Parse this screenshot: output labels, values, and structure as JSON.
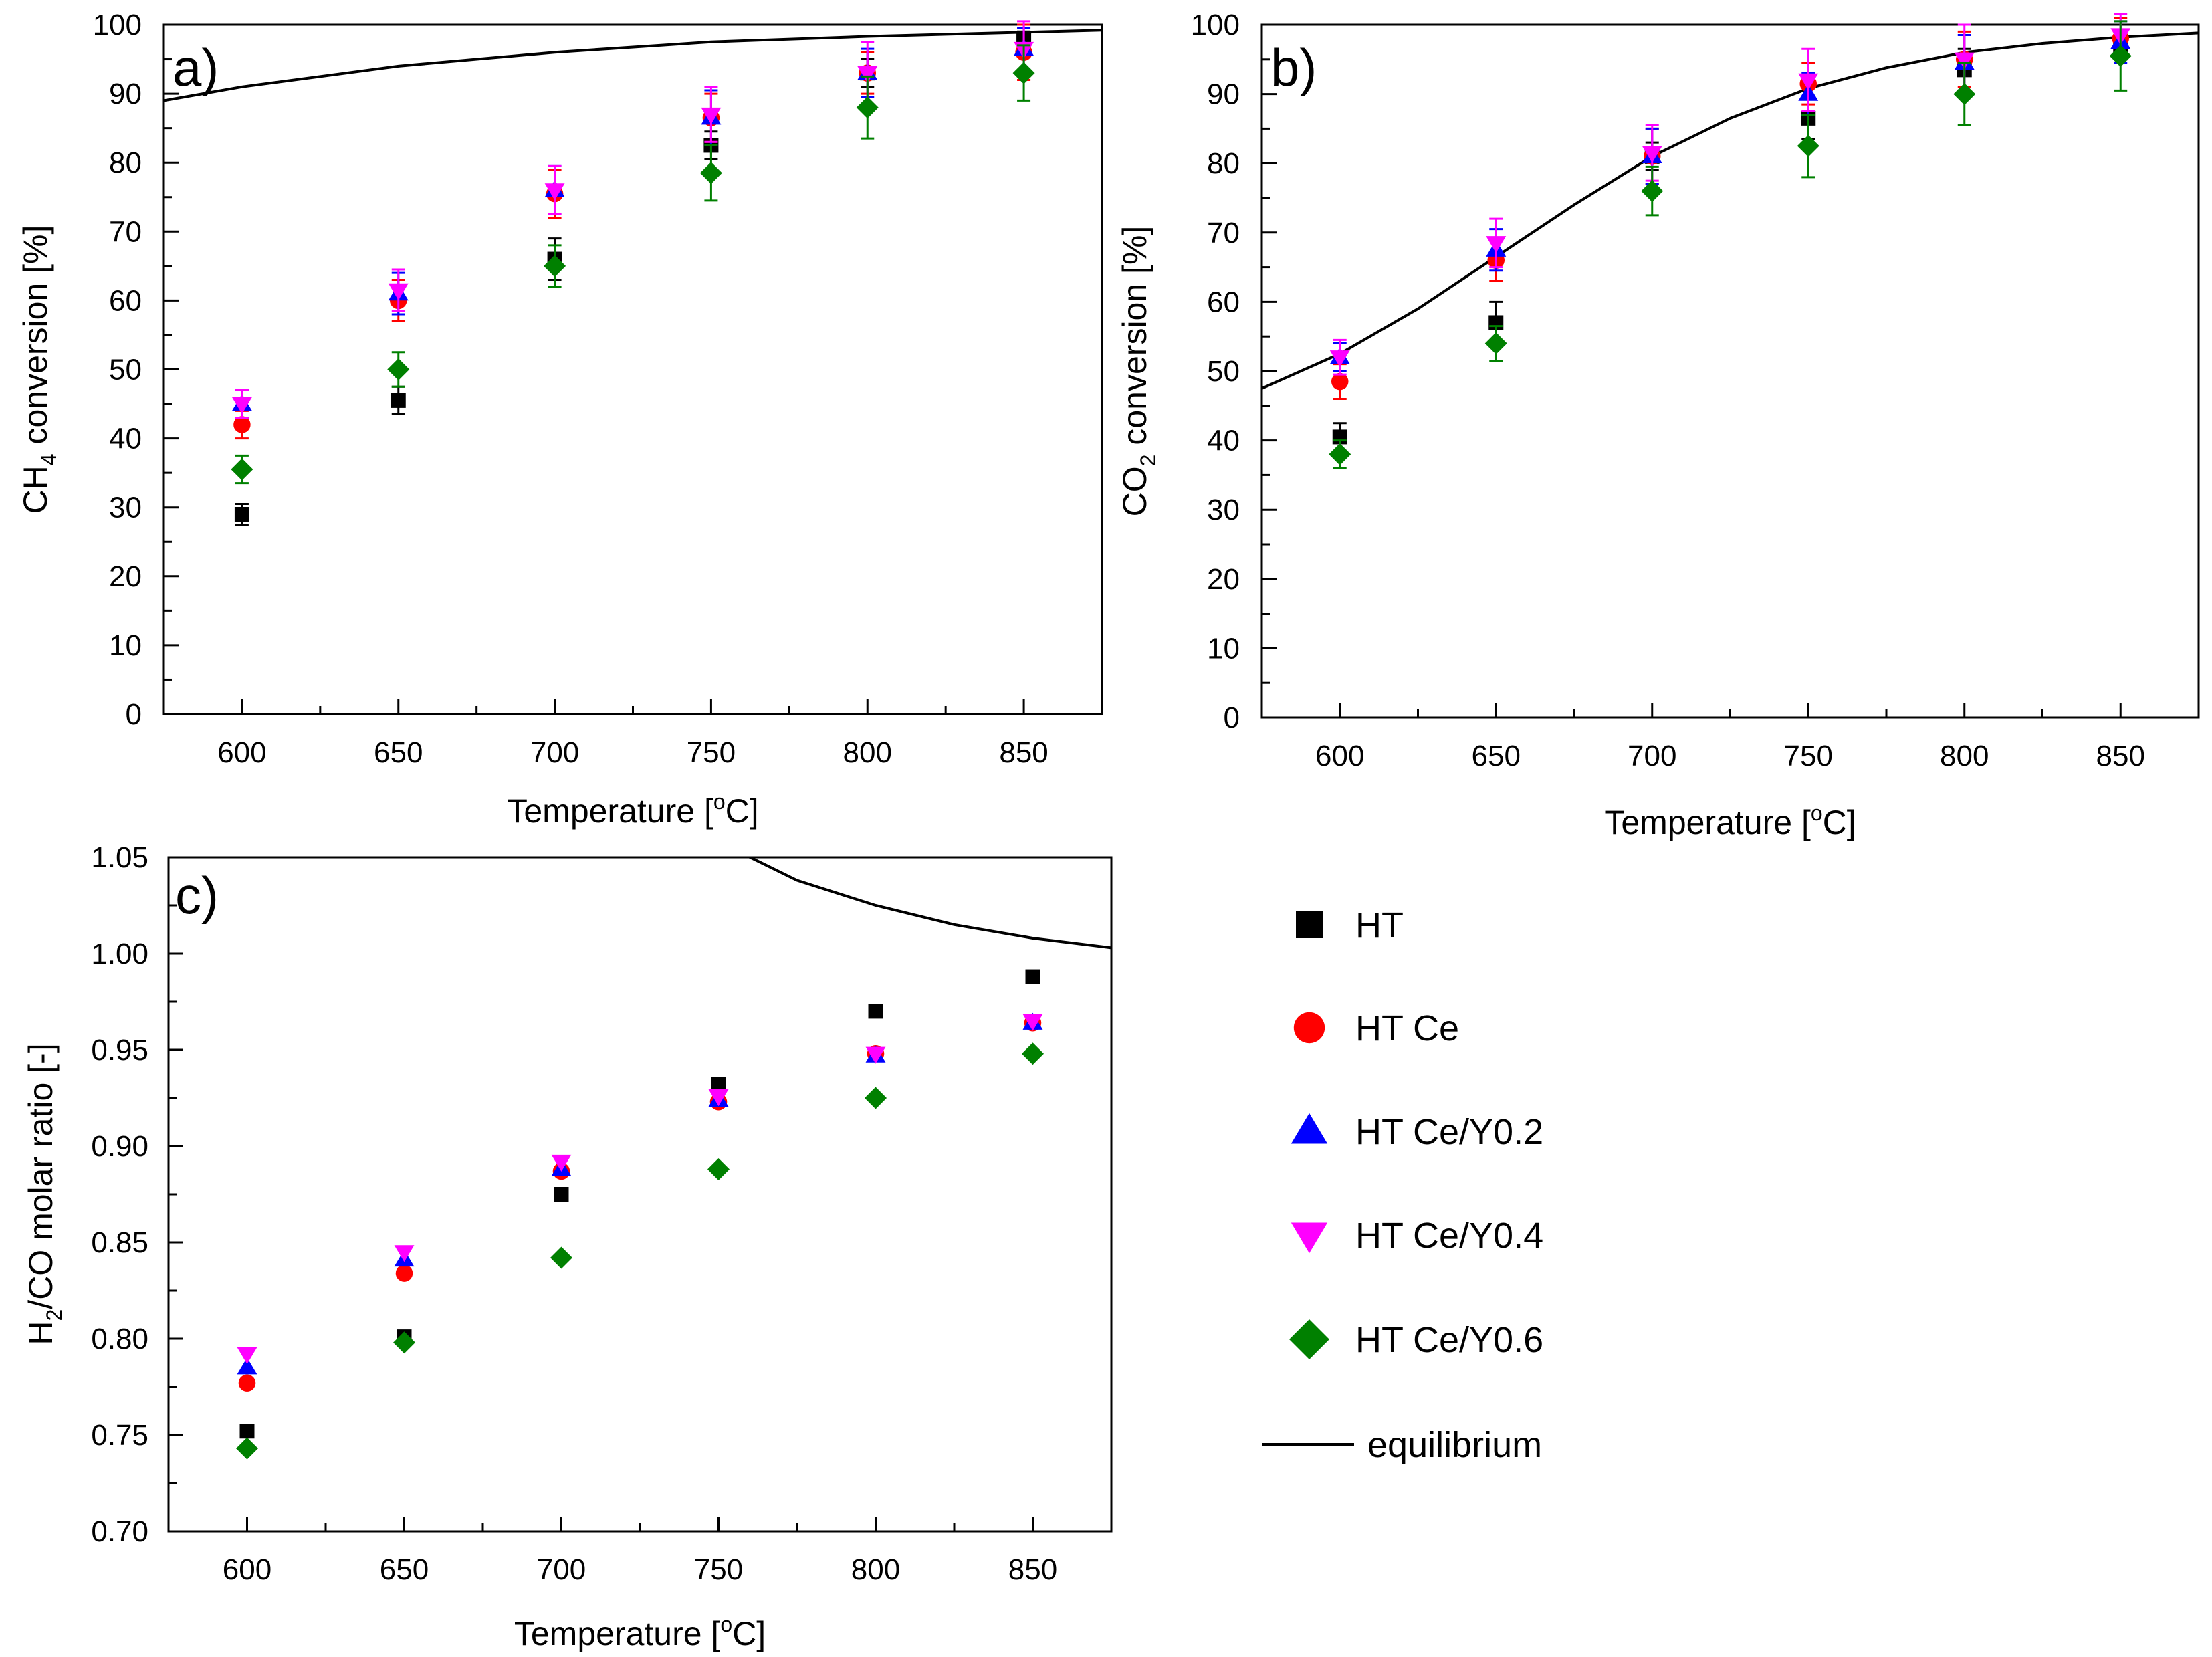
{
  "legend": {
    "entries": [
      {
        "name": "HT",
        "marker": "square",
        "color": "#000000"
      },
      {
        "name": "HT Ce",
        "marker": "circle",
        "color": "#ff0000"
      },
      {
        "name": "HT Ce/Y0.2",
        "marker": "triangle-up",
        "color": "#0000ff"
      },
      {
        "name": "HT Ce/Y0.4",
        "marker": "triangle-down",
        "color": "#ff00ff"
      },
      {
        "name": "HT Ce/Y0.6",
        "marker": "diamond",
        "color": "#008000"
      },
      {
        "name": "equilibrium",
        "marker": "line",
        "color": "#000000"
      }
    ]
  },
  "chart_data": [
    {
      "panel": "a)",
      "type": "scatter",
      "ylabel": "CH4 conversion [%]",
      "ylabel_main": "CH",
      "ylabel_sub": "4",
      "ylabel_rest": " conversion [%]",
      "xlabel": "Temperature [°C]",
      "xlabel_pre": "Temperature [",
      "xlabel_sup": "o",
      "xlabel_post": "C]",
      "xlim": [
        575,
        875
      ],
      "ylim": [
        0,
        100
      ],
      "xticks": [
        "600",
        "650",
        "700",
        "750",
        "800",
        "850"
      ],
      "yticks": [
        "0",
        "10",
        "20",
        "30",
        "40",
        "50",
        "60",
        "70",
        "80",
        "90",
        "100"
      ],
      "x": [
        600,
        650,
        700,
        750,
        800,
        850
      ],
      "series": [
        {
          "name": "HT",
          "values": [
            29,
            45.5,
            66,
            82.5,
            93,
            98
          ],
          "errors": [
            1.5,
            2,
            3,
            2,
            2,
            1
          ]
        },
        {
          "name": "HT Ce",
          "values": [
            42,
            60,
            75.5,
            86.5,
            93,
            96
          ],
          "errors": [
            2,
            3,
            3.5,
            3.5,
            3,
            4
          ]
        },
        {
          "name": "HT Ce/Y0.2",
          "values": [
            45,
            61,
            76,
            86.5,
            93,
            96.5
          ],
          "errors": [
            2,
            3,
            3.5,
            4,
            3.5,
            3
          ]
        },
        {
          "name": "HT Ce/Y0.4",
          "values": [
            45,
            61.5,
            76,
            87,
            93,
            96.5
          ],
          "errors": [
            2,
            3,
            3.5,
            4,
            4.5,
            4
          ]
        },
        {
          "name": "HT Ce/Y0.6",
          "values": [
            35.5,
            50,
            65,
            78.5,
            88,
            93
          ],
          "errors": [
            2,
            2.5,
            3,
            4,
            4.5,
            4
          ]
        }
      ],
      "equilibrium": {
        "x": [
          575,
          600,
          650,
          700,
          750,
          800,
          850,
          875
        ],
        "y": [
          89,
          91,
          94,
          96,
          97.5,
          98.3,
          98.9,
          99.2
        ]
      }
    },
    {
      "panel": "b)",
      "type": "scatter",
      "ylabel": "CO2 conversion [%]",
      "ylabel_main": "CO",
      "ylabel_sub": "2",
      "ylabel_rest": " conversion [%]",
      "xlabel": "Temperature [°C]",
      "xlabel_pre": "Temperature [",
      "xlabel_sup": "o",
      "xlabel_post": "C]",
      "xlim": [
        575,
        875
      ],
      "ylim": [
        0,
        100
      ],
      "xticks": [
        "600",
        "650",
        "700",
        "750",
        "800",
        "850"
      ],
      "yticks": [
        "0",
        "10",
        "20",
        "30",
        "40",
        "50",
        "60",
        "70",
        "80",
        "90",
        "100"
      ],
      "x": [
        600,
        650,
        700,
        750,
        800,
        850
      ],
      "series": [
        {
          "name": "HT",
          "values": [
            40.5,
            57,
            81,
            86.5,
            93.5,
            97
          ],
          "errors": [
            2,
            3,
            2,
            3,
            3,
            2
          ]
        },
        {
          "name": "HT Ce",
          "values": [
            48.5,
            66,
            81,
            91.5,
            95,
            98
          ],
          "errors": [
            2.5,
            3,
            4,
            3,
            4,
            3
          ]
        },
        {
          "name": "HT Ce/Y0.2",
          "values": [
            52,
            67.5,
            81,
            90,
            94.5,
            97.5
          ],
          "errors": [
            2,
            3,
            4,
            3,
            4,
            3
          ]
        },
        {
          "name": "HT Ce/Y0.4",
          "values": [
            52,
            68.5,
            81.5,
            92,
            95,
            98.5
          ],
          "errors": [
            2.5,
            3.5,
            4,
            4.5,
            5,
            3
          ]
        },
        {
          "name": "HT Ce/Y0.6",
          "values": [
            38,
            54,
            76,
            82.5,
            90,
            95.5
          ],
          "errors": [
            2,
            2.5,
            3.5,
            4.5,
            4.5,
            5
          ]
        }
      ],
      "equilibrium": {
        "x": [
          575,
          600,
          625,
          650,
          675,
          700,
          725,
          750,
          775,
          800,
          825,
          850,
          875
        ],
        "y": [
          47.5,
          52.5,
          59,
          66.5,
          74,
          81,
          86.5,
          90.8,
          93.8,
          96,
          97.3,
          98.2,
          98.8
        ]
      }
    },
    {
      "panel": "c)",
      "type": "scatter",
      "ylabel": "H2/CO molar ratio [-]",
      "ylabel_main": "H",
      "ylabel_sub": "2",
      "ylabel_rest": "/CO molar ratio [-]",
      "xlabel": "Temperature [°C]",
      "xlabel_pre": "Temperature [",
      "xlabel_sup": "o",
      "xlabel_post": "C]",
      "xlim": [
        575,
        875
      ],
      "ylim": [
        0.7,
        1.05
      ],
      "xticks": [
        "600",
        "650",
        "700",
        "750",
        "800",
        "850"
      ],
      "yticks": [
        "0.70",
        "0.75",
        "0.80",
        "0.85",
        "0.90",
        "0.95",
        "1.00",
        "1.05"
      ],
      "x": [
        600,
        650,
        700,
        750,
        800,
        850
      ],
      "series": [
        {
          "name": "HT",
          "values": [
            0.752,
            0.801,
            0.875,
            0.932,
            0.97,
            0.988
          ]
        },
        {
          "name": "HT Ce",
          "values": [
            0.777,
            0.834,
            0.887,
            0.923,
            0.948,
            0.964
          ]
        },
        {
          "name": "HT Ce/Y0.2",
          "values": [
            0.785,
            0.841,
            0.888,
            0.924,
            0.947,
            0.964
          ]
        },
        {
          "name": "HT Ce/Y0.4",
          "values": [
            0.792,
            0.845,
            0.892,
            0.926,
            0.948,
            0.965
          ]
        },
        {
          "name": "HT Ce/Y0.6",
          "values": [
            0.743,
            0.798,
            0.842,
            0.888,
            0.925,
            0.948
          ]
        }
      ],
      "equilibrium": {
        "x": [
          750,
          775,
          800,
          825,
          850,
          875
        ],
        "y": [
          1.058,
          1.038,
          1.025,
          1.015,
          1.008,
          1.003
        ]
      }
    }
  ]
}
